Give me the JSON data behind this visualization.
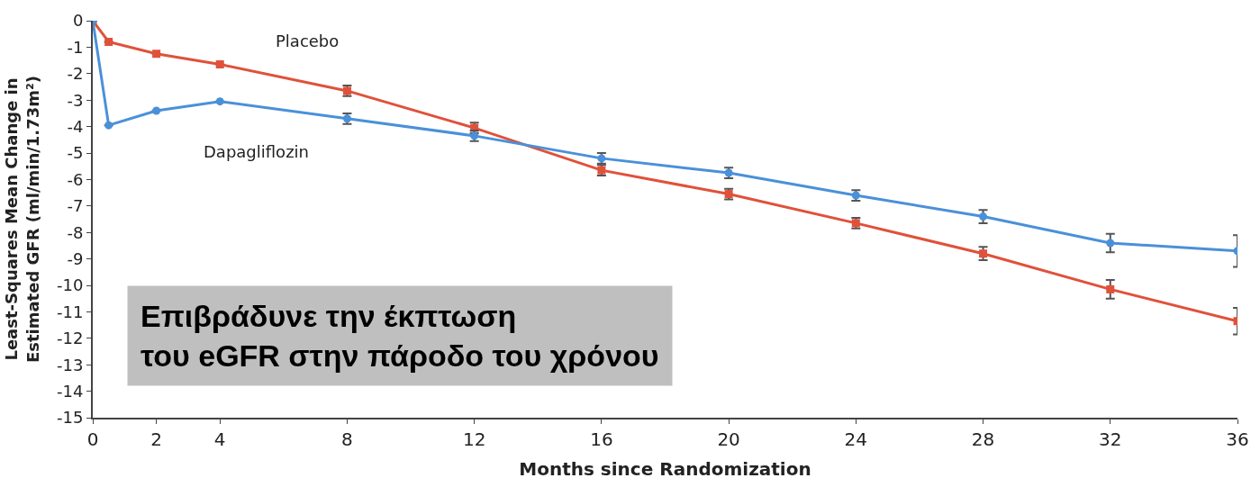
{
  "chart_data": {
    "type": "line",
    "xlabel": "Months since Randomization",
    "ylabel": "Least-Squares Mean Change in\nEstimated GFR (ml/min/1.73m²)",
    "x": [
      0,
      0.5,
      2,
      4,
      8,
      12,
      16,
      20,
      24,
      28,
      32,
      36
    ],
    "series": [
      {
        "name": "Placebo",
        "color": "#e0513a",
        "marker": "square",
        "values": [
          0,
          -0.8,
          -1.25,
          -1.65,
          -2.65,
          -4.05,
          -5.65,
          -6.55,
          -7.65,
          -8.8,
          -10.15,
          -11.35
        ],
        "errors": [
          null,
          null,
          null,
          null,
          0.2,
          0.2,
          0.2,
          0.2,
          0.2,
          0.25,
          0.35,
          0.5
        ]
      },
      {
        "name": "Dapagliflozin",
        "color": "#4a90d9",
        "marker": "circle",
        "values": [
          0,
          -3.95,
          -3.4,
          -3.05,
          -3.7,
          -4.35,
          -5.2,
          -5.75,
          -6.6,
          -7.4,
          -8.4,
          -8.7
        ],
        "errors": [
          null,
          null,
          null,
          null,
          0.2,
          0.2,
          0.2,
          0.2,
          0.2,
          0.25,
          0.35,
          0.6
        ]
      }
    ],
    "annotations": [
      "Επιβράδυνε την έκπτωση\nτου eGFR στην πάροδο του χρόνου"
    ],
    "xlim": [
      0,
      36
    ],
    "xticks": [
      0,
      2,
      4,
      8,
      12,
      16,
      20,
      24,
      28,
      32,
      36
    ],
    "ylim": [
      -15,
      0
    ],
    "yticks": [
      0,
      -1,
      -2,
      -3,
      -4,
      -5,
      -6,
      -7,
      -8,
      -9,
      -10,
      -11,
      -12,
      -13,
      -14,
      -15
    ],
    "legend": false,
    "line_style": "solid"
  }
}
